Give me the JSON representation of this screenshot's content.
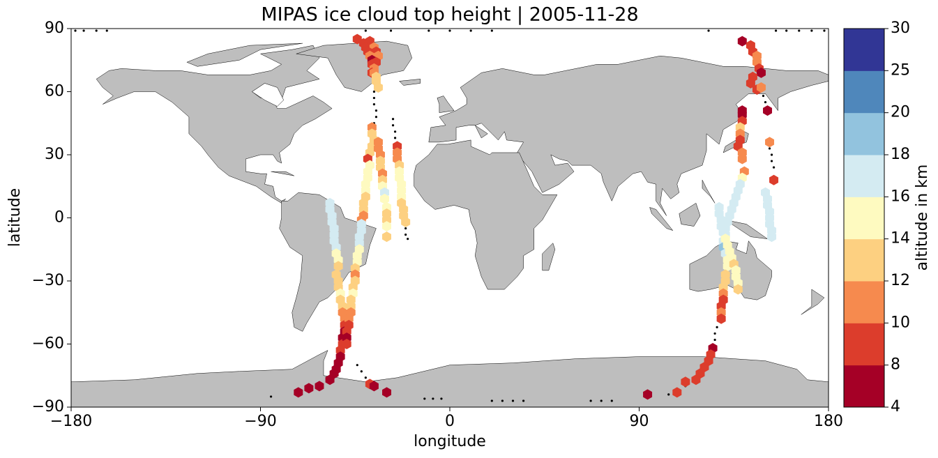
{
  "chart_data": {
    "type": "scatter",
    "title": "MIPAS ice cloud top height | 2005-11-28",
    "xlabel": "longitude",
    "ylabel": "latitude",
    "xlim": [
      -180,
      180
    ],
    "ylim": [
      -90,
      90
    ],
    "xticks": [
      {
        "value": -180,
        "label": "−180"
      },
      {
        "value": -90,
        "label": "−90"
      },
      0,
      90,
      180
    ],
    "yticks": [
      {
        "value": -90,
        "label": "−90"
      },
      {
        "value": -60,
        "label": "−60"
      },
      {
        "value": -30,
        "label": "−30"
      },
      0,
      30,
      60,
      90
    ],
    "marker": "hexagon",
    "x": [
      -44,
      -41,
      -38,
      -40,
      -36,
      -39,
      -35,
      -38,
      -34,
      -37,
      -35,
      -37,
      -36,
      -37,
      -36,
      -35,
      -35,
      -34,
      -37,
      -37,
      -36,
      -37,
      -38,
      -39,
      -38,
      -39,
      -39,
      -40,
      -40,
      -40,
      -41,
      -41,
      -41,
      -42,
      -34,
      -34,
      -33,
      -33,
      -33,
      -32,
      -32,
      -32,
      -31,
      -31,
      -30,
      -30,
      -30,
      -30,
      -30,
      -25,
      -25,
      -25,
      -24,
      -24,
      -24,
      -23,
      -23,
      -23,
      -23,
      -22,
      -22,
      -21,
      -57,
      -57,
      -56,
      -56,
      -55,
      -55,
      -55,
      -54,
      -54,
      -53,
      -53,
      -54,
      -53,
      -53,
      -52,
      -52,
      -51,
      -51,
      -50,
      -50,
      -50,
      -51,
      -51,
      -52,
      -52,
      -53,
      -54,
      -55,
      -57,
      -62,
      -67,
      -72,
      -42,
      -42,
      -43,
      -43,
      -43,
      -44,
      -44,
      -45,
      -45,
      -45,
      -46,
      -46,
      -47,
      -47,
      -47,
      -48,
      -48,
      -49,
      -49,
      -49,
      -38,
      -36,
      -30,
      139,
      143,
      144,
      146,
      146,
      147,
      148,
      144,
      143,
      146,
      148,
      151,
      152,
      154,
      150,
      151,
      151,
      152,
      152,
      152,
      153,
      153,
      139,
      139,
      139,
      138,
      138,
      138,
      137,
      139,
      139,
      140,
      139,
      138,
      137,
      136,
      135,
      134,
      133,
      132,
      131,
      131,
      130,
      130,
      131,
      132,
      132,
      131,
      131,
      130,
      130,
      130,
      129,
      129,
      129,
      128,
      128,
      129,
      129,
      130,
      131,
      132,
      133,
      134,
      135,
      136,
      136,
      137,
      137,
      125,
      124,
      123,
      121,
      119,
      117,
      112,
      108,
      94
    ],
    "y": [
      85,
      83,
      84,
      81,
      81,
      79,
      79,
      77,
      77,
      75,
      74,
      73,
      71,
      69,
      69,
      67,
      65,
      62,
      43,
      40,
      37,
      34,
      31,
      28,
      25,
      22,
      19,
      16,
      13,
      10,
      7,
      4,
      1,
      -1,
      36,
      33,
      30,
      27,
      24,
      21,
      18,
      15,
      12,
      9,
      5,
      2,
      -1,
      -4,
      -9,
      34,
      31,
      28,
      25,
      22,
      19,
      16,
      13,
      10,
      7,
      4,
      1,
      -2,
      7,
      4,
      1,
      -2,
      -5,
      -8,
      -11,
      -14,
      -17,
      -20,
      -23,
      -27,
      -30,
      -33,
      -36,
      -39,
      -42,
      -45,
      -48,
      -51,
      -54,
      -57,
      -60,
      -63,
      -66,
      -69,
      -72,
      -74,
      -77,
      -80,
      -81,
      -83,
      -3,
      -6,
      -9,
      -12,
      -15,
      -18,
      -21,
      -24,
      -27,
      -30,
      -33,
      -36,
      -39,
      -42,
      -45,
      -48,
      -51,
      -54,
      -57,
      -60,
      -79,
      -80,
      -83,
      84,
      82,
      79,
      77,
      74,
      71,
      69,
      67,
      64,
      61,
      62,
      51,
      36,
      18,
      12,
      9,
      6,
      3,
      0,
      -3,
      -6,
      -9,
      51,
      49,
      46,
      43,
      40,
      37,
      34,
      31,
      28,
      22,
      19,
      16,
      13,
      10,
      7,
      4,
      1,
      -2,
      -5,
      -8,
      -11,
      -14,
      -17,
      -20,
      -23,
      -27,
      -30,
      -33,
      -36,
      -39,
      -42,
      -45,
      -48,
      5,
      2,
      -1,
      -4,
      -7,
      -10,
      -13,
      -16,
      -19,
      -22,
      -25,
      -28,
      -31,
      -34,
      -62,
      -65,
      -68,
      -71,
      -74,
      -77,
      -78,
      -83,
      -84
    ],
    "values": [
      9,
      9,
      9,
      9,
      11,
      9,
      9,
      11,
      11,
      7,
      9,
      9,
      11,
      9,
      11,
      13,
      13,
      13,
      11,
      13,
      13,
      13,
      13,
      9,
      15,
      15,
      15,
      15,
      15,
      13,
      13,
      13,
      11,
      11,
      11,
      11,
      11,
      13,
      13,
      11,
      13,
      15,
      17,
      15,
      15,
      13,
      13,
      15,
      13,
      9,
      11,
      11,
      13,
      15,
      15,
      15,
      15,
      15,
      13,
      13,
      13,
      13,
      17,
      17,
      17,
      17,
      17,
      17,
      17,
      17,
      15,
      15,
      13,
      13,
      13,
      13,
      15,
      13,
      13,
      11,
      11,
      9,
      7,
      7,
      9,
      9,
      7,
      7,
      7,
      7,
      7,
      7,
      7,
      7,
      17,
      17,
      17,
      17,
      15,
      15,
      15,
      13,
      11,
      13,
      13,
      15,
      13,
      13,
      11,
      11,
      9,
      9,
      7,
      9,
      9,
      7,
      7,
      7,
      9,
      9,
      11,
      11,
      9,
      7,
      9,
      9,
      9,
      11,
      7,
      11,
      9,
      17,
      17,
      17,
      17,
      17,
      17,
      17,
      17,
      7,
      7,
      9,
      13,
      11,
      9,
      9,
      11,
      11,
      11,
      15,
      17,
      17,
      17,
      17,
      17,
      17,
      17,
      17,
      17,
      17,
      19,
      17,
      15,
      15,
      13,
      13,
      13,
      11,
      9,
      9,
      11,
      9,
      17,
      17,
      17,
      17,
      17,
      15,
      15,
      15,
      15,
      13,
      15,
      15,
      15,
      13,
      7,
      9,
      9,
      9,
      9,
      9,
      9,
      9,
      7
    ],
    "clear": {
      "color": "#000000",
      "x": [
        -36,
        -36,
        -36,
        -35,
        -35,
        -36,
        -27,
        -27,
        -26,
        -26,
        -44,
        -42,
        -40,
        -12,
        -8,
        -4,
        20,
        25,
        30,
        35,
        67,
        72,
        77,
        -85,
        -178,
        -174,
        -168,
        -163,
        -40,
        -28,
        -10,
        0,
        10,
        20,
        123,
        155,
        160,
        166,
        172,
        178,
        149,
        150,
        152,
        153,
        153,
        154,
        127,
        126,
        126,
        112,
        104,
        -21,
        -21,
        -20
      ],
      "y": [
        60,
        57,
        54,
        51,
        48,
        45,
        47,
        44,
        41,
        38,
        -70,
        -73,
        -76,
        -86,
        -86,
        -86,
        -87,
        -87,
        -87,
        -87,
        -87,
        -87,
        -87,
        -85,
        89,
        89,
        89,
        89,
        89,
        89,
        89,
        89,
        89,
        89,
        89,
        89,
        89,
        89,
        89,
        89,
        58,
        55,
        33,
        30,
        27,
        24,
        -52,
        -55,
        -58,
        -80,
        -84,
        -5,
        -8,
        -10
      ]
    },
    "colorbar": {
      "label": "altitude in km",
      "ticks": [
        4,
        8,
        10,
        12,
        14,
        16,
        18,
        20,
        25,
        30
      ],
      "colors": [
        "#a50026",
        "#dc3d2c",
        "#f68a4e",
        "#fdd081",
        "#fefac0",
        "#d4ebf2",
        "#92c3de",
        "#4f87bb",
        "#313695"
      ]
    }
  }
}
